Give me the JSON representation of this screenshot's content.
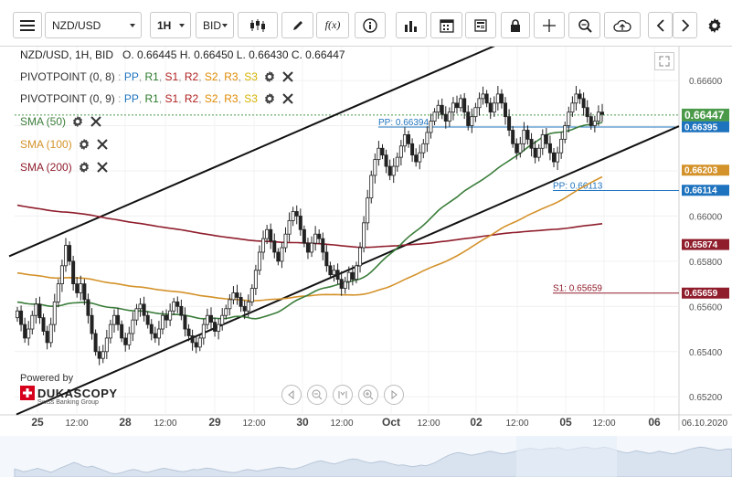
{
  "toolbar": {
    "symbol": "NZD/USD",
    "period": "1H",
    "side": "BID",
    "function_label": "f(x)"
  },
  "info": {
    "header": "NZD/USD, 1H, BID",
    "ohlc": "O. 0.66445 H. 0.66450 L. 0.66430 C. 0.66447"
  },
  "indicators": {
    "pivot1_name": "PIVOTPOINT (0, 8)",
    "pivot2_name": "PIVOTPOINT (0, 9)",
    "levels": [
      "PP",
      "R1",
      "S1",
      "R2",
      "S2",
      "R3",
      "S3"
    ],
    "sma50": "SMA (50)",
    "sma100": "SMA (100)",
    "sma200": "SMA (200)"
  },
  "branding": {
    "powered_by": "Powered by",
    "name": "DUKASCOPY",
    "sub": "Swiss Banking Group"
  },
  "colors": {
    "candle": "#2e7d32",
    "sma50": "#3b7d3b",
    "sma100": "#d4922a",
    "sma200": "#8f1d2c",
    "pivot_line": "#1e73be",
    "s1_line": "#8f1d2c",
    "last_price": "#4a9a4a"
  },
  "chart_data": {
    "type": "candlestick",
    "timeframe": "1H",
    "ylim": [
      0.6512,
      0.6675
    ],
    "y_ticks": [
      "0.66600",
      "0.66400",
      "0.66200",
      "0.66000",
      "0.65800",
      "0.65600",
      "0.65400",
      "0.65200"
    ],
    "x_labels": [
      "25",
      "12:00",
      "28",
      "12:00",
      "29",
      "12:00",
      "30",
      "12:00",
      "Oct",
      "12:00",
      "02",
      "12:00",
      "05",
      "12:00",
      "06",
      "06.10.2020"
    ],
    "closes": [
      0.6558,
      0.6552,
      0.6546,
      0.655,
      0.6556,
      0.6561,
      0.6555,
      0.6549,
      0.6544,
      0.6552,
      0.6562,
      0.657,
      0.6578,
      0.6587,
      0.658,
      0.657,
      0.6566,
      0.657,
      0.6563,
      0.6556,
      0.6548,
      0.654,
      0.6537,
      0.654,
      0.6546,
      0.6552,
      0.6556,
      0.6552,
      0.6546,
      0.6543,
      0.6548,
      0.6554,
      0.6559,
      0.6561,
      0.6556,
      0.6552,
      0.6548,
      0.6546,
      0.655,
      0.6556,
      0.6554,
      0.6558,
      0.6562,
      0.656,
      0.6556,
      0.655,
      0.6547,
      0.6544,
      0.6542,
      0.6546,
      0.6552,
      0.6556,
      0.6553,
      0.6549,
      0.6552,
      0.6556,
      0.6559,
      0.6563,
      0.6566,
      0.6564,
      0.656,
      0.6558,
      0.6562,
      0.6568,
      0.6576,
      0.6584,
      0.659,
      0.6594,
      0.6589,
      0.6584,
      0.658,
      0.6586,
      0.6592,
      0.6598,
      0.6602,
      0.66,
      0.6594,
      0.6588,
      0.6584,
      0.6588,
      0.6592,
      0.659,
      0.6584,
      0.6578,
      0.6574,
      0.6576,
      0.6572,
      0.6568,
      0.6571,
      0.6575,
      0.6572,
      0.6578,
      0.6586,
      0.6597,
      0.6608,
      0.6618,
      0.6625,
      0.663,
      0.6627,
      0.6622,
      0.6618,
      0.6622,
      0.6626,
      0.6631,
      0.6636,
      0.6632,
      0.6627,
      0.6624,
      0.6628,
      0.6632,
      0.6637,
      0.6642,
      0.6646,
      0.6649,
      0.6645,
      0.6642,
      0.6646,
      0.665,
      0.6648,
      0.6652,
      0.6646,
      0.664,
      0.6644,
      0.6648,
      0.6652,
      0.6654,
      0.665,
      0.6646,
      0.665,
      0.6654,
      0.665,
      0.6644,
      0.6638,
      0.6632,
      0.6628,
      0.6632,
      0.6638,
      0.6634,
      0.663,
      0.6626,
      0.663,
      0.6636,
      0.6632,
      0.6628,
      0.6624,
      0.6628,
      0.6634,
      0.664,
      0.6646,
      0.665,
      0.6654,
      0.6652,
      0.6648,
      0.6644,
      0.664,
      0.6642,
      0.6646,
      0.6645
    ],
    "series": [
      {
        "name": "SMA (50)",
        "last": 0.66395
      },
      {
        "name": "SMA (100)",
        "last": 0.66203
      },
      {
        "name": "SMA (200)",
        "last": 0.65874
      }
    ],
    "price_labels": [
      {
        "label": "0.66447",
        "value": 0.66447,
        "color": "last_price"
      },
      {
        "label": "0.66395",
        "value": 0.66395,
        "color": "pivot_line"
      },
      {
        "label": "0.66203",
        "value": 0.66203,
        "color": "sma100"
      },
      {
        "label": "0.66114",
        "value": 0.66114,
        "color": "pivot_line"
      },
      {
        "label": "0.65874",
        "value": 0.65874,
        "color": "sma200"
      },
      {
        "label": "0.65659",
        "value": 0.65659,
        "color": "s1_line"
      }
    ],
    "pivot_annotations": [
      {
        "label": "PP: 0.66394",
        "value": 0.66394
      },
      {
        "label": "PP: 0.66113",
        "value": 0.66113
      },
      {
        "label": "S1: 0.65659",
        "value": 0.65659
      }
    ],
    "trend_channel": true,
    "grid": true
  }
}
